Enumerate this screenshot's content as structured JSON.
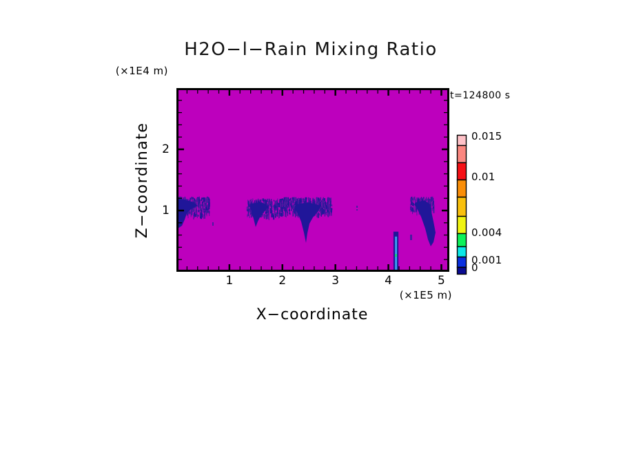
{
  "page": {
    "background": "#ffffff"
  },
  "chart_data": {
    "type": "heatmap",
    "title": "H2O−l−Rain Mixing Ratio",
    "time_label": "t=124800 s",
    "xlabel": "X−coordinate",
    "ylabel": "Z−coordinate",
    "x_unit_label": "(×1E5 m)",
    "y_unit_label": "(×1E4 m)",
    "x_range": [
      0,
      5.15
    ],
    "z_range": [
      0,
      3.0
    ],
    "x_major_ticks": [
      1,
      2,
      3,
      4,
      5
    ],
    "z_major_ticks": [
      1,
      2
    ],
    "minor_tick_step": 0.2,
    "grid": false,
    "background_value_color": "#BD00BD",
    "colors": {
      "frame": "#000000",
      "shaft_core": "#201699",
      "shaft_speckle_a": "#221699",
      "shaft_speckle_b": "#4A1AA0",
      "streak_core": "#38A0F0",
      "streak_green": "#10E060"
    },
    "colorbar": {
      "position": "right",
      "segments": [
        {
          "color": "#FFC2C8",
          "height": 15,
          "from": 0.014,
          "to": 0.015
        },
        {
          "color": "#FB8780",
          "height": 25,
          "from": 0.012,
          "to": 0.014
        },
        {
          "color": "#F61016",
          "height": 25,
          "from": 0.01,
          "to": 0.012
        },
        {
          "color": "#FA8E08",
          "height": 25,
          "from": 0.008,
          "to": 0.01
        },
        {
          "color": "#F9C00D",
          "height": 28,
          "from": 0.006,
          "to": 0.008
        },
        {
          "color": "#F0F412",
          "height": 25,
          "from": 0.004,
          "to": 0.006
        },
        {
          "color": "#0EF25A",
          "height": 19,
          "from": 0.003,
          "to": 0.004
        },
        {
          "color": "#0CE8E8",
          "height": 15,
          "from": 0.002,
          "to": 0.003
        },
        {
          "color": "#0A30E0",
          "height": 15,
          "from": 0.001,
          "to": 0.002
        },
        {
          "color": "#0A0B92",
          "height": 10,
          "from": 0.0,
          "to": 0.001
        }
      ],
      "labels": [
        {
          "text": "0.015",
          "offset": 2
        },
        {
          "text": "0.01",
          "offset": 61
        },
        {
          "text": "0.004",
          "offset": 142
        },
        {
          "text": "0.001",
          "offset": 182
        },
        {
          "text": "0",
          "offset": 193
        }
      ]
    },
    "features": {
      "canopies": [
        {
          "seed": 11,
          "x0": 0.0,
          "x1": 0.62,
          "z0": 0.93,
          "z1": 1.23,
          "count": 300
        },
        {
          "seed": 22,
          "x0": 1.32,
          "x1": 2.07,
          "z0": 0.92,
          "z1": 1.2,
          "count": 330
        },
        {
          "seed": 33,
          "x0": 2.02,
          "x1": 2.92,
          "z0": 0.95,
          "z1": 1.22,
          "count": 430
        },
        {
          "seed": 44,
          "x0": 4.41,
          "x1": 4.85,
          "z0": 1.0,
          "z1": 1.23,
          "count": 170
        }
      ],
      "cores": [
        {
          "points": [
            [
              0.0,
              1.2
            ],
            [
              0.156,
              1.18
            ],
            [
              0.325,
              1.135
            ],
            [
              0.403,
              1.079
            ],
            [
              0.273,
              1.022
            ],
            [
              0.195,
              0.955
            ],
            [
              0.156,
              0.854
            ],
            [
              0.104,
              0.753
            ],
            [
              0.026,
              0.708
            ],
            [
              0.0,
              0.775
            ]
          ]
        },
        {
          "points": [
            [
              1.392,
              1.112
            ],
            [
              1.613,
              1.135
            ],
            [
              1.743,
              1.067
            ],
            [
              1.665,
              0.989
            ],
            [
              1.587,
              0.91
            ],
            [
              1.535,
              0.82
            ],
            [
              1.496,
              0.73
            ],
            [
              1.457,
              0.865
            ],
            [
              1.418,
              0.978
            ],
            [
              1.379,
              1.067
            ]
          ]
        },
        {
          "points": [
            [
              2.25,
              1.101
            ],
            [
              2.484,
              1.135
            ],
            [
              2.731,
              1.079
            ],
            [
              2.666,
              0.978
            ],
            [
              2.575,
              0.888
            ],
            [
              2.51,
              0.787
            ],
            [
              2.471,
              0.629
            ],
            [
              2.445,
              0.472
            ],
            [
              2.406,
              0.64
            ],
            [
              2.354,
              0.82
            ],
            [
              2.289,
              0.955
            ],
            [
              2.224,
              1.034
            ]
          ]
        },
        {
          "points": [
            [
              4.526,
              1.135
            ],
            [
              4.682,
              1.169
            ],
            [
              4.786,
              1.101
            ],
            [
              4.812,
              0.978
            ],
            [
              4.851,
              0.82
            ],
            [
              4.89,
              0.64
            ],
            [
              4.851,
              0.483
            ],
            [
              4.799,
              0.416
            ],
            [
              4.747,
              0.528
            ],
            [
              4.695,
              0.708
            ],
            [
              4.617,
              0.899
            ],
            [
              4.539,
              1.034
            ],
            [
              4.487,
              1.101
            ]
          ]
        }
      ],
      "streak": {
        "outer": {
          "x0": 4.095,
          "x1": 4.19,
          "z0": 0.0,
          "z1": 0.655
        },
        "inner": {
          "x0": 4.125,
          "x1": 4.163,
          "z0": 0.02,
          "z1": 0.575
        },
        "green": {
          "x0": 4.127,
          "x1": 4.158,
          "z0": 0.245,
          "z1": 0.29
        }
      },
      "specks": [
        {
          "x": 0.676,
          "z": 0.809,
          "w": 2,
          "h": 5
        },
        {
          "x": 3.395,
          "z": 1.079,
          "w": 2,
          "h": 3
        },
        {
          "x": 3.395,
          "z": 1.022,
          "w": 2,
          "h": 2
        },
        {
          "x": 4.409,
          "z": 0.607,
          "w": 3,
          "h": 8
        }
      ]
    }
  }
}
